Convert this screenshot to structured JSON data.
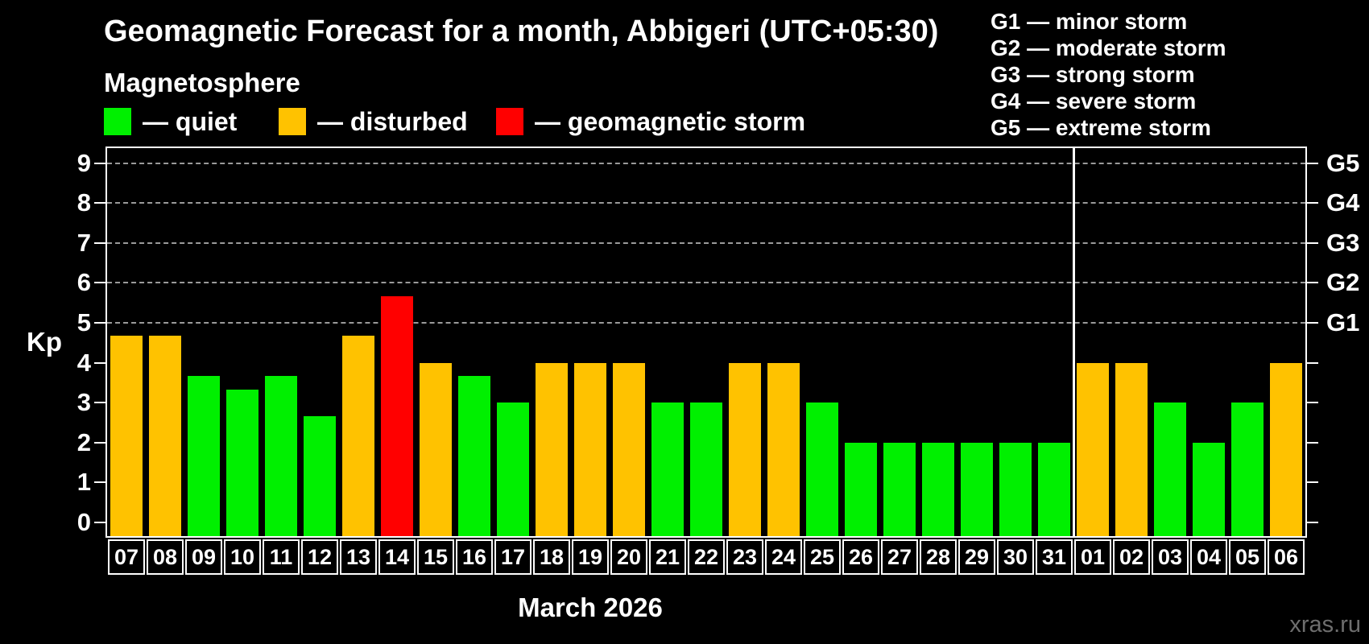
{
  "header": {
    "title": "Geomagnetic Forecast for a month, Abbigeri (UTC+05:30)",
    "subtitle": "Magnetosphere",
    "legend": [
      {
        "key": "quiet",
        "label": "— quiet",
        "color": "#00f000"
      },
      {
        "key": "disturbed",
        "label": "— disturbed",
        "color": "#ffc200"
      },
      {
        "key": "storm",
        "label": "— geomagnetic storm",
        "color": "#ff0000"
      }
    ],
    "g_legend": [
      "G1 — minor storm",
      "G2 — moderate storm",
      "G3 — strong storm",
      "G4 — severe storm",
      "G5 — extreme storm"
    ]
  },
  "chart_data": {
    "type": "bar",
    "title": "Geomagnetic Forecast for a month, Abbigeri (UTC+05:30)",
    "subtitle": "Magnetosphere",
    "xlabel": "March 2026",
    "ylabel": "Kp",
    "ylim": [
      0,
      9
    ],
    "yticks": [
      0,
      1,
      2,
      3,
      4,
      5,
      6,
      7,
      8,
      9
    ],
    "grid": "dashed horizontal lines at Kp 5-9 only",
    "gridlines_at": [
      5,
      6,
      7,
      8,
      9
    ],
    "right_axis": [
      {
        "label": "G1",
        "kp": 5
      },
      {
        "label": "G2",
        "kp": 6
      },
      {
        "label": "G3",
        "kp": 7
      },
      {
        "label": "G4",
        "kp": 8
      },
      {
        "label": "G5",
        "kp": 9
      }
    ],
    "categories": [
      "07",
      "08",
      "09",
      "10",
      "11",
      "12",
      "13",
      "14",
      "15",
      "16",
      "17",
      "18",
      "19",
      "20",
      "21",
      "22",
      "23",
      "24",
      "25",
      "26",
      "27",
      "28",
      "29",
      "30",
      "31",
      "01",
      "02",
      "03",
      "04",
      "05",
      "06"
    ],
    "values": [
      4.67,
      4.67,
      3.67,
      3.33,
      3.67,
      2.67,
      4.67,
      5.67,
      4,
      3.67,
      3,
      4,
      4,
      4,
      3,
      3,
      4,
      4,
      3,
      2,
      2,
      2,
      2,
      2,
      2,
      4,
      4,
      3,
      2,
      3,
      4
    ],
    "statuses": [
      "disturbed",
      "disturbed",
      "quiet",
      "quiet",
      "quiet",
      "quiet",
      "disturbed",
      "storm",
      "disturbed",
      "quiet",
      "quiet",
      "disturbed",
      "disturbed",
      "disturbed",
      "quiet",
      "quiet",
      "disturbed",
      "disturbed",
      "quiet",
      "quiet",
      "quiet",
      "quiet",
      "quiet",
      "quiet",
      "quiet",
      "disturbed",
      "disturbed",
      "quiet",
      "quiet",
      "quiet",
      "disturbed"
    ],
    "colors": {
      "quiet": "#00f000",
      "disturbed": "#ffc200",
      "storm": "#ff0000"
    },
    "month_separator_after_category": "31",
    "legend_position": "top-left",
    "axis_color": "#ffffff",
    "background": "#000000"
  },
  "watermark": "xras.ru"
}
